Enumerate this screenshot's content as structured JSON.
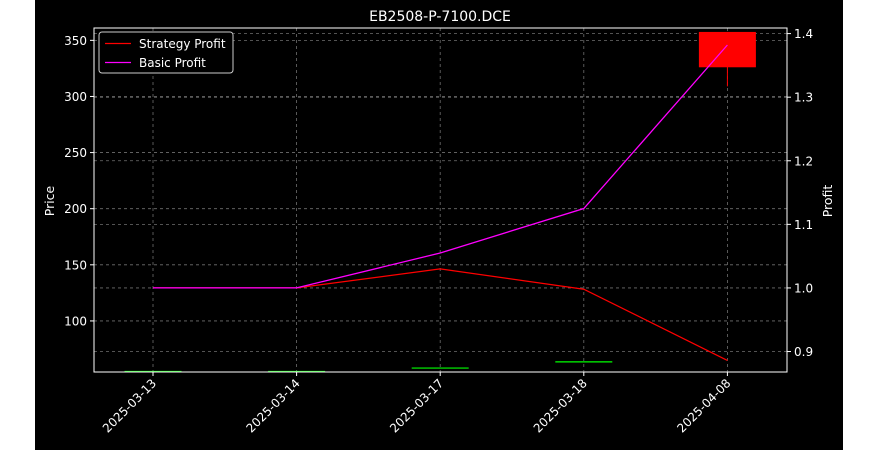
{
  "chart_data": {
    "type": "candlestick+line",
    "title": "EB2508-P-7100.DCE",
    "xlabel": "",
    "ylabel_left": "Price",
    "ylabel_right": "Profit",
    "categories": [
      "2025-03-13",
      "2025-03-14",
      "2025-03-17",
      "2025-03-18",
      "2025-04-08"
    ],
    "ylim_left": [
      54.5,
      361
    ],
    "yticks_left": [
      "100",
      "150",
      "200",
      "250",
      "300",
      "350"
    ],
    "ylim_right": [
      0.8678,
      1.4088
    ],
    "yticks_right": [
      "0.9",
      "1.0",
      "1.1",
      "1.2",
      "1.3",
      "1.4"
    ],
    "grid": true,
    "legend_position": "top-left",
    "candles": [
      {
        "date": "2025-03-13",
        "open": 55.0,
        "high": 55.0,
        "low": 55.0,
        "close": 55.0
      },
      {
        "date": "2025-03-14",
        "open": 55.0,
        "high": 55.0,
        "low": 55.0,
        "close": 55.0
      },
      {
        "date": "2025-03-17",
        "open": 58.0,
        "high": 58.0,
        "low": 58.0,
        "close": 58.0
      },
      {
        "date": "2025-03-18",
        "open": 63.5,
        "high": 63.5,
        "low": 63.5,
        "close": 63.5
      },
      {
        "date": "2025-04-08",
        "open": 357.5,
        "high": 357.5,
        "low": 309,
        "close": 326
      }
    ],
    "series": [
      {
        "name": "Strategy Profit",
        "color": "#ff0000",
        "values": [
          1.0,
          1.0,
          1.03,
          0.998,
          0.886
        ]
      },
      {
        "name": "Basic Profit",
        "color": "#ff00ff",
        "values": [
          1.0,
          1.0,
          1.055,
          1.125,
          1.382
        ]
      }
    ]
  }
}
